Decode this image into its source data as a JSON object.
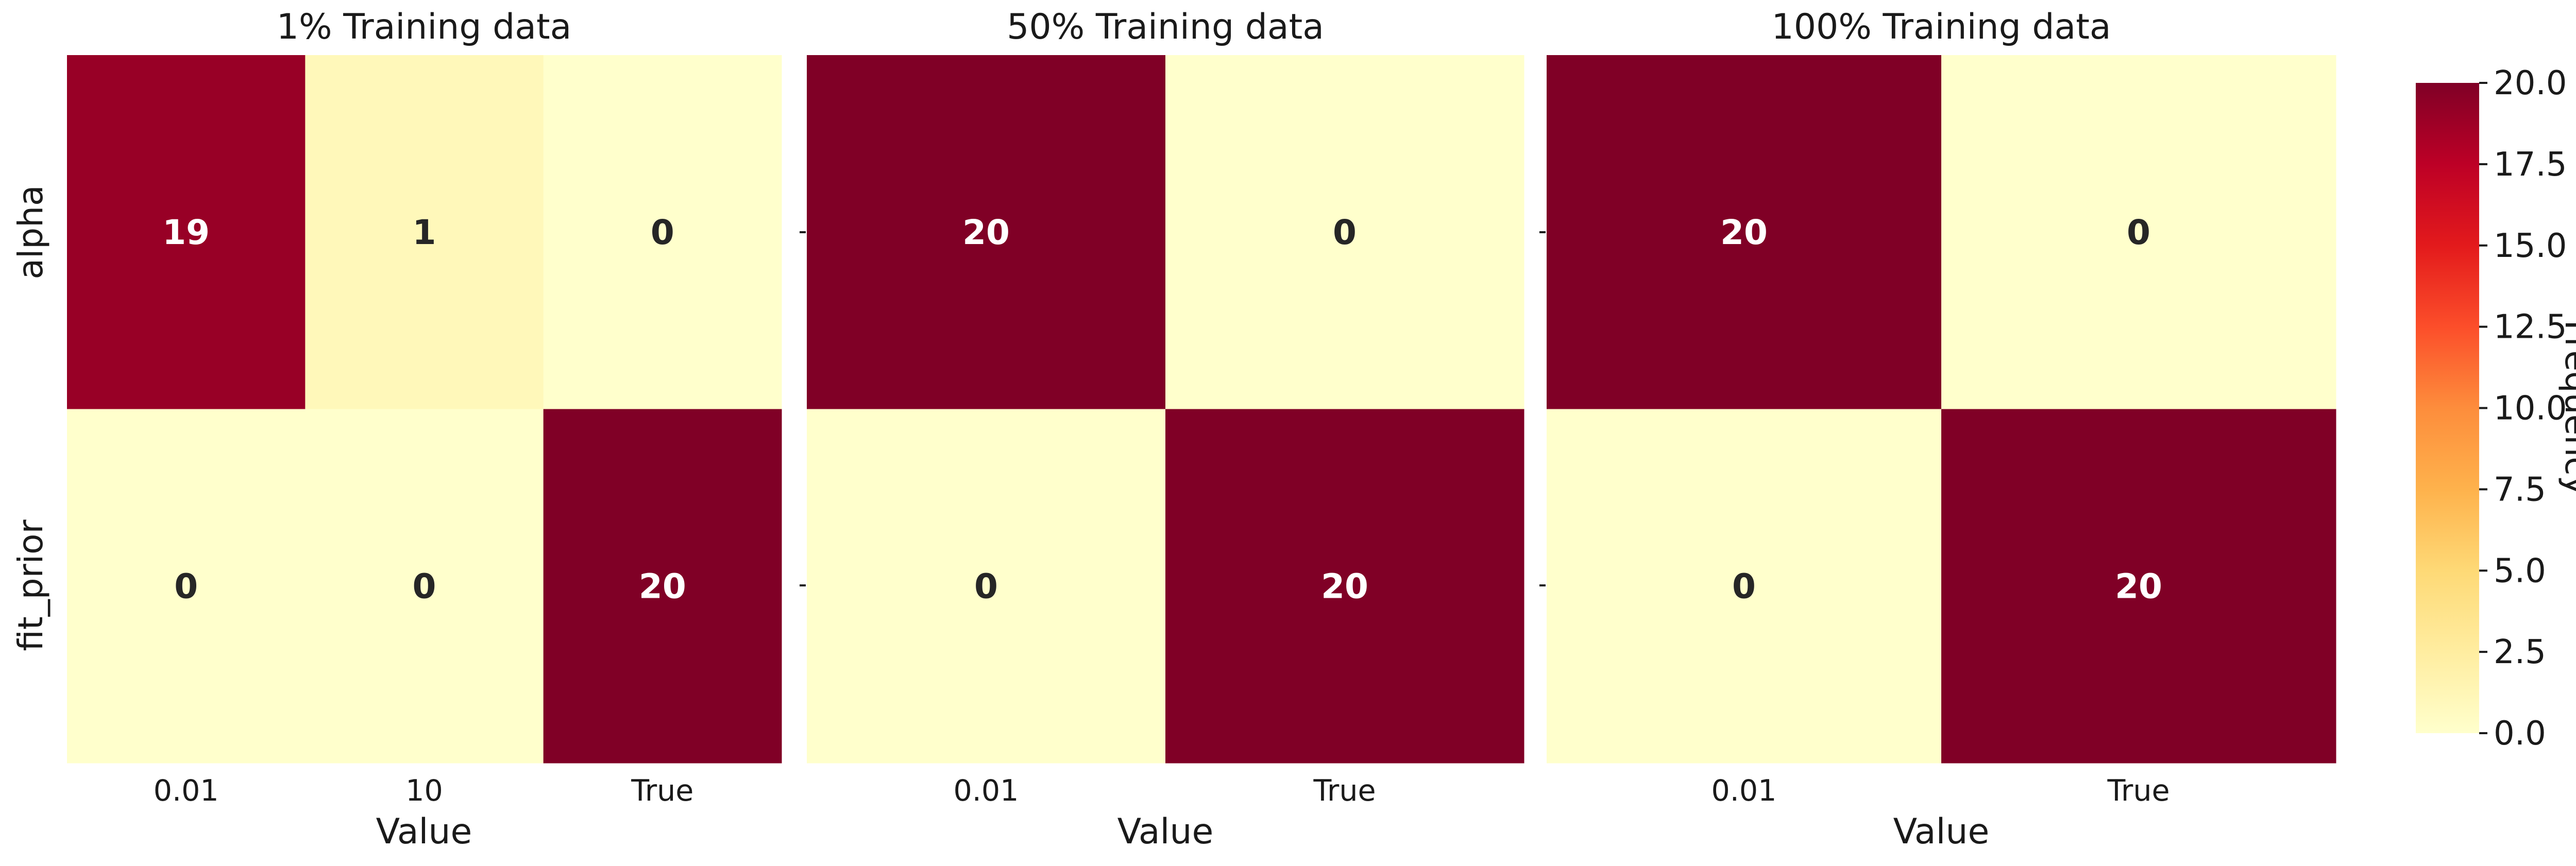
{
  "chart_data": [
    {
      "type": "heatmap",
      "title": "1% Training data",
      "rows": [
        "alpha",
        "fit_prior"
      ],
      "columns": [
        "0.01",
        "10",
        "True"
      ],
      "values": [
        [
          19,
          1,
          0
        ],
        [
          0,
          0,
          20
        ]
      ],
      "xlabel": "Value",
      "ylabel": ""
    },
    {
      "type": "heatmap",
      "title": "50% Training data",
      "rows": [
        "alpha",
        "fit_prior"
      ],
      "columns": [
        "0.01",
        "True"
      ],
      "values": [
        [
          20,
          0
        ],
        [
          0,
          20
        ]
      ],
      "xlabel": "Value",
      "ylabel": ""
    },
    {
      "type": "heatmap",
      "title": "100% Training data",
      "rows": [
        "alpha",
        "fit_prior"
      ],
      "columns": [
        "0.01",
        "True"
      ],
      "values": [
        [
          20,
          0
        ],
        [
          0,
          20
        ]
      ],
      "xlabel": "Value",
      "ylabel": ""
    }
  ],
  "colorbar": {
    "label": "Frequency",
    "range": [
      0,
      20
    ],
    "ticks": [
      "0.0",
      "2.5",
      "5.0",
      "7.5",
      "10.0",
      "12.5",
      "15.0",
      "17.5",
      "20.0"
    ],
    "colormap": "YlOrRd",
    "colormap_stops": [
      "#ffffcc",
      "#ffeda0",
      "#fed976",
      "#feb24c",
      "#fd8d3c",
      "#fc4e2a",
      "#e31a1c",
      "#bd0026",
      "#800026"
    ]
  },
  "colors": {
    "text_dark": "#262626",
    "text_light": "#ffffff"
  }
}
